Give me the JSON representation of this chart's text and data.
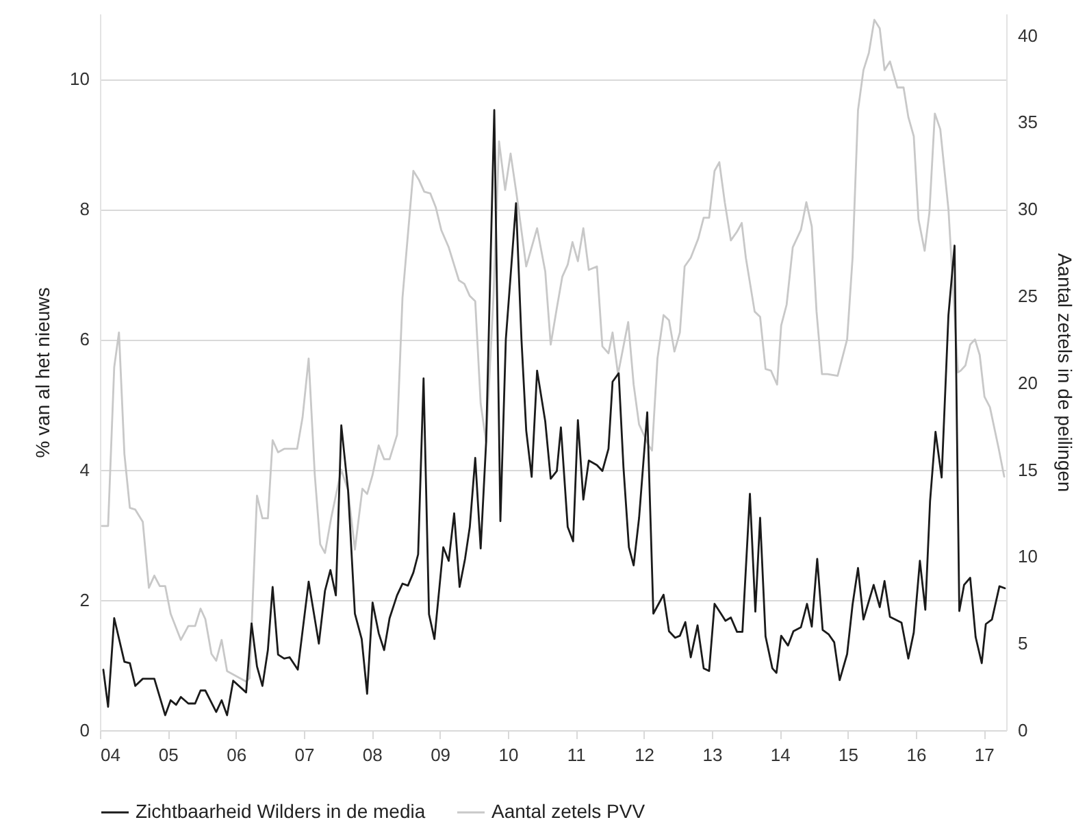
{
  "chart_data": {
    "type": "line",
    "ylabel": "% van al het nieuws",
    "y2label": "Aantal zetels in de peilingen",
    "xlim": [
      2004,
      2017.33
    ],
    "xticks": [
      {
        "value": 2004,
        "label": "04"
      },
      {
        "value": 2005,
        "label": "05"
      },
      {
        "value": 2006,
        "label": "06"
      },
      {
        "value": 2007,
        "label": "07"
      },
      {
        "value": 2008,
        "label": "08"
      },
      {
        "value": 2009,
        "label": "09"
      },
      {
        "value": 2010,
        "label": "10"
      },
      {
        "value": 2011,
        "label": "11"
      },
      {
        "value": 2012,
        "label": "12"
      },
      {
        "value": 2013,
        "label": "13"
      },
      {
        "value": 2014,
        "label": "14"
      },
      {
        "value": 2015,
        "label": "15"
      },
      {
        "value": 2016,
        "label": "16"
      },
      {
        "value": 2017,
        "label": "17"
      }
    ],
    "ylim": [
      0,
      11
    ],
    "yticks": [
      0,
      2,
      4,
      6,
      8,
      10
    ],
    "y2lim": [
      0,
      41.25
    ],
    "y2ticks": [
      0,
      5,
      10,
      15,
      20,
      25,
      30,
      35,
      40
    ],
    "grid": "y",
    "legend": "bottom",
    "line_style": "solid",
    "marker": "none",
    "series": [
      {
        "name": "Zichtbaarheid Wilders in de media",
        "color": "#1a1a1a",
        "x": [
          2004.05,
          2004.12,
          2004.21,
          2004.36,
          2004.44,
          2004.52,
          2004.63,
          2004.8,
          2004.96,
          2005.04,
          2005.12,
          2005.19,
          2005.3,
          2005.4,
          2005.48,
          2005.55,
          2005.71,
          2005.79,
          2005.87,
          2005.96,
          2006.15,
          2006.23,
          2006.31,
          2006.39,
          2006.47,
          2006.54,
          2006.62,
          2006.71,
          2006.79,
          2006.91,
          2007.07,
          2007.16,
          2007.22,
          2007.31,
          2007.39,
          2007.47,
          2007.55,
          2007.65,
          2007.75,
          2007.85,
          2007.93,
          2008.01,
          2008.1,
          2008.18,
          2008.26,
          2008.37,
          2008.45,
          2008.53,
          2008.61,
          2008.68,
          2008.76,
          2008.84,
          2008.92,
          2009.05,
          2009.13,
          2009.21,
          2009.29,
          2009.37,
          2009.44,
          2009.52,
          2009.6,
          2009.68,
          2009.8,
          2009.89,
          2009.97,
          2010.12,
          2010.2,
          2010.27,
          2010.35,
          2010.43,
          2010.55,
          2010.63,
          2010.72,
          2010.78,
          2010.88,
          2010.96,
          2011.03,
          2011.11,
          2011.19,
          2011.31,
          2011.39,
          2011.48,
          2011.54,
          2011.63,
          2011.7,
          2011.78,
          2011.85,
          2011.93,
          2012.05,
          2012.14,
          2012.29,
          2012.37,
          2012.46,
          2012.53,
          2012.61,
          2012.69,
          2012.79,
          2012.88,
          2012.96,
          2013.04,
          2013.14,
          2013.2,
          2013.28,
          2013.37,
          2013.45,
          2013.56,
          2013.64,
          2013.71,
          2013.79,
          2013.89,
          2013.95,
          2014.02,
          2014.12,
          2014.2,
          2014.31,
          2014.4,
          2014.47,
          2014.55,
          2014.63,
          2014.72,
          2014.8,
          2014.88,
          2014.99,
          2015.07,
          2015.15,
          2015.23,
          2015.38,
          2015.47,
          2015.54,
          2015.62,
          2015.79,
          2015.89,
          2015.97,
          2016.06,
          2016.14,
          2016.21,
          2016.29,
          2016.38,
          2016.48,
          2016.57,
          2016.64,
          2016.71,
          2016.8,
          2016.88,
          2016.97,
          2017.03,
          2017.12,
          2017.23,
          2017.31
        ],
        "values": [
          0.93,
          0.36,
          1.72,
          1.05,
          1.03,
          0.68,
          0.79,
          0.79,
          0.23,
          0.46,
          0.39,
          0.51,
          0.41,
          0.41,
          0.61,
          0.61,
          0.28,
          0.46,
          0.23,
          0.76,
          0.58,
          1.64,
          0.98,
          0.68,
          1.23,
          2.2,
          1.16,
          1.1,
          1.12,
          0.93,
          2.28,
          1.71,
          1.33,
          2.14,
          2.46,
          2.07,
          4.68,
          3.68,
          1.79,
          1.4,
          0.56,
          1.96,
          1.49,
          1.23,
          1.72,
          2.07,
          2.25,
          2.22,
          2.42,
          2.7,
          5.4,
          1.78,
          1.4,
          2.81,
          2.6,
          3.33,
          2.2,
          2.63,
          3.12,
          4.18,
          2.79,
          4.42,
          9.52,
          3.21,
          6.0,
          8.09,
          6.0,
          4.6,
          3.89,
          5.52,
          4.74,
          3.86,
          3.98,
          4.65,
          3.12,
          2.9,
          4.76,
          3.54,
          4.14,
          4.07,
          3.98,
          4.32,
          5.35,
          5.48,
          4.04,
          2.81,
          2.53,
          3.26,
          4.88,
          1.79,
          2.08,
          1.52,
          1.42,
          1.45,
          1.66,
          1.12,
          1.61,
          0.95,
          0.91,
          1.94,
          1.78,
          1.68,
          1.73,
          1.51,
          1.51,
          3.63,
          1.82,
          3.26,
          1.44,
          0.95,
          0.88,
          1.45,
          1.3,
          1.52,
          1.58,
          1.94,
          1.59,
          2.63,
          1.54,
          1.47,
          1.35,
          0.77,
          1.17,
          1.93,
          2.49,
          1.7,
          2.23,
          1.89,
          2.29,
          1.74,
          1.65,
          1.1,
          1.5,
          2.6,
          1.85,
          3.52,
          4.58,
          3.88,
          6.37,
          7.44,
          1.83,
          2.23,
          2.34,
          1.43,
          1.03,
          1.63,
          1.7,
          2.21,
          2.18
        ]
      },
      {
        "name": "Aantal zetels PVV",
        "color": "#c8c8c8",
        "axis": "y2",
        "x": [
          2004.03,
          2004.12,
          2004.21,
          2004.28,
          2004.36,
          2004.44,
          2004.52,
          2004.63,
          2004.72,
          2004.8,
          2004.88,
          2004.96,
          2005.04,
          2005.19,
          2005.3,
          2005.4,
          2005.48,
          2005.55,
          2005.64,
          2005.71,
          2005.79,
          2005.87,
          2006.15,
          2006.2,
          2006.31,
          2006.39,
          2006.47,
          2006.54,
          2006.62,
          2006.71,
          2006.9,
          2006.98,
          2007.07,
          2007.16,
          2007.24,
          2007.31,
          2007.4,
          2007.55,
          2007.65,
          2007.75,
          2007.86,
          2007.93,
          2008.01,
          2008.1,
          2008.18,
          2008.26,
          2008.37,
          2008.45,
          2008.61,
          2008.69,
          2008.77,
          2008.86,
          2008.94,
          2009.02,
          2009.13,
          2009.28,
          2009.36,
          2009.44,
          2009.52,
          2009.6,
          2009.68,
          2009.79,
          2009.87,
          2009.96,
          2010.04,
          2010.13,
          2010.27,
          2010.43,
          2010.55,
          2010.63,
          2010.72,
          2010.8,
          2010.88,
          2010.95,
          2011.03,
          2011.11,
          2011.19,
          2011.31,
          2011.39,
          2011.48,
          2011.54,
          2011.62,
          2011.77,
          2011.85,
          2011.93,
          2012.07,
          2012.12,
          2012.2,
          2012.29,
          2012.37,
          2012.45,
          2012.53,
          2012.6,
          2012.69,
          2012.8,
          2012.88,
          2012.96,
          2013.04,
          2013.11,
          2013.19,
          2013.28,
          2013.37,
          2013.44,
          2013.5,
          2013.63,
          2013.71,
          2013.79,
          2013.87,
          2013.96,
          2014.02,
          2014.1,
          2014.19,
          2014.31,
          2014.39,
          2014.47,
          2014.54,
          2014.62,
          2014.7,
          2014.85,
          2014.99,
          2015.07,
          2015.15,
          2015.23,
          2015.31,
          2015.39,
          2015.47,
          2015.54,
          2015.62,
          2015.73,
          2015.82,
          2015.89,
          2015.97,
          2016.04,
          2016.13,
          2016.2,
          2016.28,
          2016.36,
          2016.48,
          2016.62,
          2016.66,
          2016.73,
          2016.8,
          2016.87,
          2016.94,
          2017.01,
          2017.09,
          2017.22,
          2017.3
        ],
        "values": [
          11.76,
          11.76,
          20.9,
          22.9,
          15.9,
          12.8,
          12.7,
          12.0,
          8.2,
          8.9,
          8.3,
          8.3,
          6.7,
          5.2,
          6.0,
          6.0,
          7.0,
          6.4,
          4.4,
          4.0,
          5.2,
          3.4,
          2.8,
          3.0,
          13.5,
          12.2,
          12.2,
          16.7,
          16.0,
          16.2,
          16.2,
          18.0,
          21.4,
          14.7,
          10.7,
          10.2,
          12.2,
          15.0,
          13.8,
          10.4,
          13.9,
          13.6,
          14.7,
          16.4,
          15.6,
          15.6,
          17.0,
          24.9,
          32.2,
          31.7,
          31.0,
          30.9,
          30.1,
          28.8,
          27.8,
          25.9,
          25.7,
          25.0,
          24.7,
          18.8,
          16.6,
          25.1,
          33.9,
          31.1,
          33.2,
          30.8,
          26.7,
          28.9,
          26.4,
          22.2,
          24.3,
          26.1,
          26.8,
          28.1,
          27.0,
          28.9,
          26.5,
          26.7,
          22.1,
          21.7,
          22.9,
          20.5,
          23.5,
          19.9,
          17.6,
          16.4,
          16.1,
          21.4,
          23.9,
          23.6,
          21.8,
          22.9,
          26.7,
          27.2,
          28.3,
          29.5,
          29.5,
          32.2,
          32.7,
          30.4,
          28.2,
          28.7,
          29.2,
          27.2,
          24.1,
          23.8,
          20.8,
          20.7,
          19.9,
          23.3,
          24.5,
          27.8,
          28.8,
          30.4,
          29.0,
          24.1,
          20.5,
          20.5,
          20.4,
          22.5,
          27.2,
          35.7,
          38.0,
          39.0,
          40.9,
          40.4,
          38.0,
          38.5,
          37.0,
          37.0,
          35.3,
          34.2,
          29.4,
          27.6,
          29.8,
          35.5,
          34.6,
          30.0,
          20.6,
          20.7,
          21.0,
          22.2,
          22.5,
          21.6,
          19.2,
          18.6,
          16.2,
          14.6
        ]
      }
    ]
  }
}
